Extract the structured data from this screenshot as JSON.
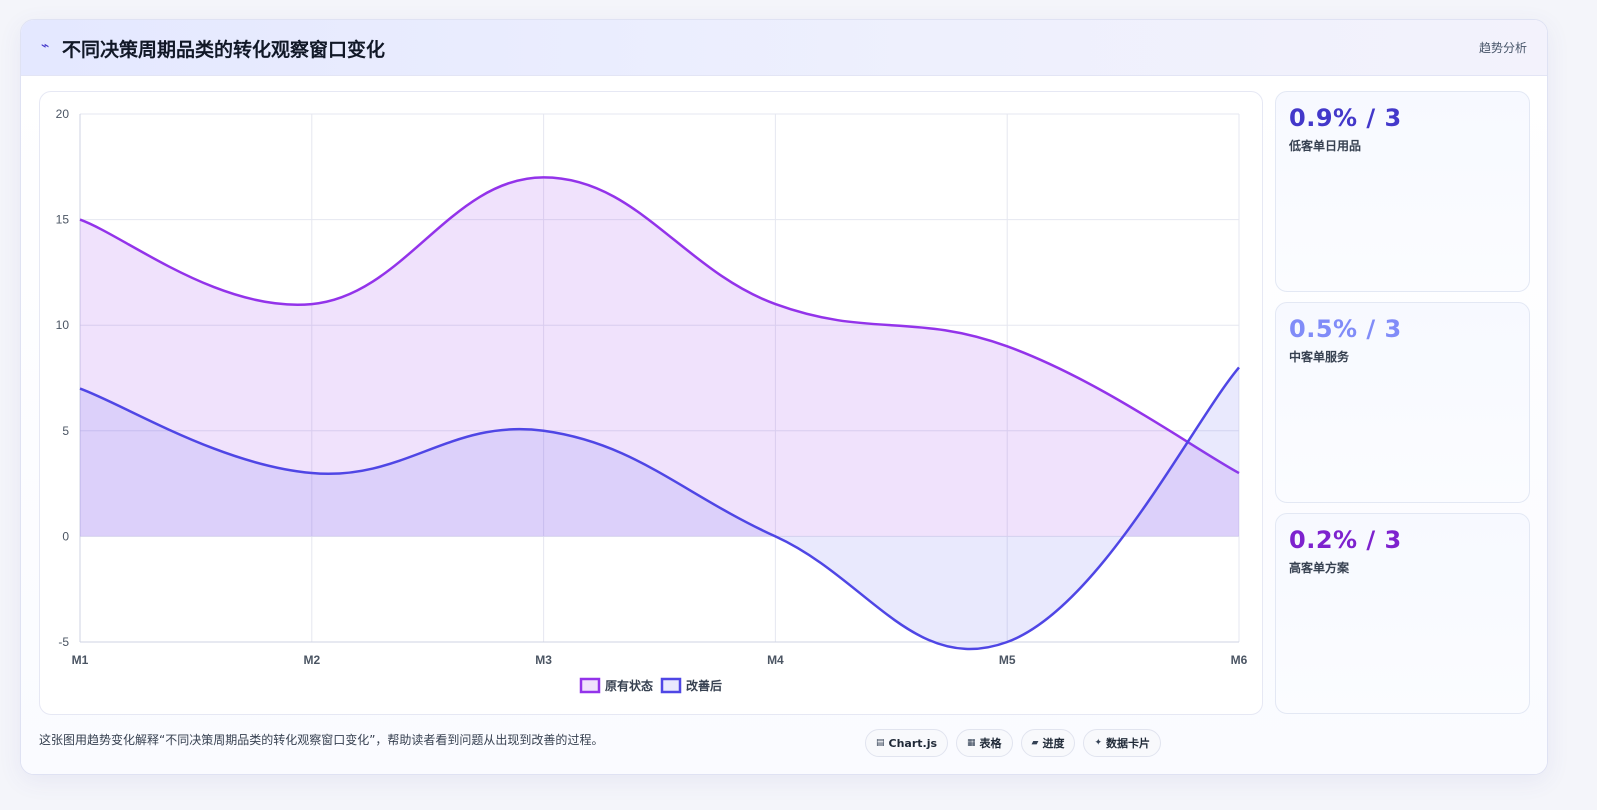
{
  "header": {
    "icon": "lightning-icon",
    "title": "不同决策周期品类的转化观察窗口变化",
    "tag": "趋势分析"
  },
  "chart_data": {
    "type": "area",
    "categories": [
      "M1",
      "M2",
      "M3",
      "M4",
      "M5",
      "M6"
    ],
    "series": [
      {
        "name": "原有状态",
        "values": [
          15,
          11,
          17,
          11,
          9,
          3
        ],
        "color": "#9333ea",
        "fill": "rgba(147,51,234,0.14)"
      },
      {
        "name": "改善后",
        "values": [
          7,
          3,
          5,
          0,
          -5,
          8
        ],
        "color": "#4f46e5",
        "fill": "rgba(99,102,241,0.14)"
      }
    ],
    "y_ticks": [
      20,
      15,
      10,
      5,
      0,
      -5
    ],
    "ylim": [
      -5,
      20
    ],
    "grid": true,
    "legend_position": "bottom",
    "smooth": true
  },
  "kpis": [
    {
      "value": "0.9% / 3",
      "label": "低客单日用品",
      "color": "#4338ca"
    },
    {
      "value": "0.5% / 3",
      "label": "中客单服务",
      "color": "#818cf8"
    },
    {
      "value": "0.2% / 3",
      "label": "高客单方案",
      "color": "#7e22ce"
    }
  ],
  "footer": {
    "description": "这张图用趋势变化解释“不同决策周期品类的转化观察窗口变化”，帮助读者看到问题从出现到改善的过程。",
    "pills": [
      {
        "icon": "chart-icon",
        "glyph": "▤",
        "label": "Chart.js"
      },
      {
        "icon": "table-icon",
        "glyph": "▦",
        "label": "表格"
      },
      {
        "icon": "progress-icon",
        "glyph": "▰",
        "label": "进度"
      },
      {
        "icon": "card-icon",
        "glyph": "✦",
        "label": "数据卡片"
      }
    ]
  }
}
